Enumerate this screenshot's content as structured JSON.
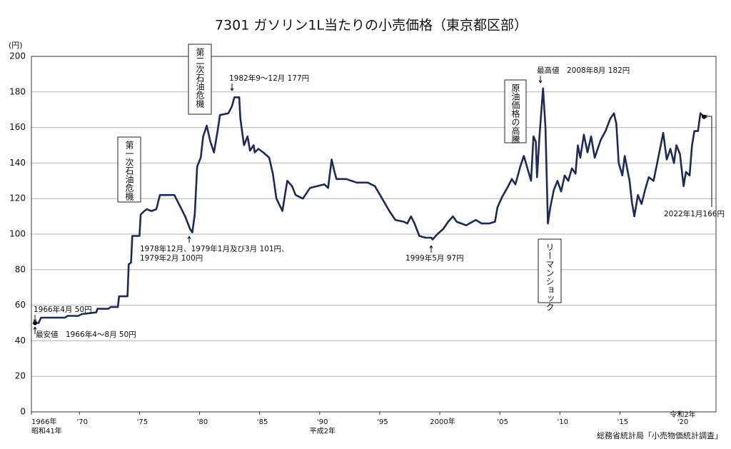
{
  "chart_data": {
    "type": "line",
    "title": "7301 ガソリン1L当たりの小売価格（東京都区部）",
    "y_label": "(円)",
    "xlim": [
      1966,
      2023
    ],
    "ylim": [
      0,
      200
    ],
    "yticks": [
      0,
      20,
      40,
      60,
      80,
      100,
      120,
      140,
      160,
      180,
      200
    ],
    "xticks": [
      {
        "value": 1966,
        "label": "1966年"
      },
      {
        "value": 1970,
        "label": "'70"
      },
      {
        "value": 1975,
        "label": "'75"
      },
      {
        "value": 1980,
        "label": "'80"
      },
      {
        "value": 1985,
        "label": "'85"
      },
      {
        "value": 1990,
        "label": "'90"
      },
      {
        "value": 1995,
        "label": "'95"
      },
      {
        "value": 2000,
        "label": "2000年"
      },
      {
        "value": 2005,
        "label": "'05"
      },
      {
        "value": 2010,
        "label": "'10"
      },
      {
        "value": 2015,
        "label": "'15"
      },
      {
        "value": 2020,
        "label": "'20"
      }
    ],
    "era_labels": [
      {
        "value": 1966,
        "label": "昭和41年"
      },
      {
        "value": 1990,
        "label": "平成2年"
      },
      {
        "value": 2020,
        "label": "令和2年"
      }
    ],
    "grid": true,
    "x": [
      1966.3,
      1966.6,
      1966.8,
      1968.8,
      1969,
      1969.9,
      1970.2,
      1971.4,
      1971.5,
      1972.4,
      1972.6,
      1973.2,
      1973.3,
      1974,
      1974.1,
      1974.3,
      1974.4,
      1975,
      1975.1,
      1975.4,
      1975.6,
      1976,
      1976.4,
      1976.7,
      1977.9,
      1978.2,
      1978.8,
      1979.2,
      1979.4,
      1979.6,
      1979.8,
      1980.1,
      1980.3,
      1980.6,
      1980.9,
      1981.2,
      1981.5,
      1981.7,
      1982.4,
      1982.7,
      1982.9,
      1983.3,
      1983.4,
      1983.7,
      1984,
      1984.2,
      1984.5,
      1984.6,
      1984.9,
      1985.3,
      1985.8,
      1986.1,
      1986.4,
      1986.9,
      1987.3,
      1987.7,
      1988,
      1988.6,
      1989.2,
      1989.8,
      1990.4,
      1990.7,
      1991,
      1991.2,
      1991.4,
      1992.2,
      1993.1,
      1994,
      1994.6,
      1995.2,
      1995.8,
      1996.3,
      1997,
      1997.3,
      1997.6,
      1997.9,
      1998.3,
      1998.8,
      1999.3,
      1999.4,
      1999.8,
      2000.3,
      2000.7,
      2001.1,
      2001.4,
      2001.8,
      2002.2,
      2003,
      2003.5,
      2004.1,
      2004.6,
      2004.8,
      2005.2,
      2005.7,
      2006,
      2006.3,
      2006.7,
      2007,
      2007.3,
      2007.6,
      2007.8,
      2008,
      2008.1,
      2008.3,
      2008.6,
      2008.8,
      2009,
      2009.2,
      2009.5,
      2009.8,
      2010.1,
      2010.4,
      2010.7,
      2011,
      2011.3,
      2011.5,
      2011.7,
      2012,
      2012.3,
      2012.6,
      2012.9,
      2013.4,
      2013.8,
      2014.2,
      2014.5,
      2014.7,
      2014.9,
      2015.2,
      2015.4,
      2015.8,
      2016,
      2016.2,
      2016.5,
      2016.8,
      2017.1,
      2017.4,
      2017.8,
      2018.1,
      2018.4,
      2018.6,
      2018.9,
      2019.2,
      2019.5,
      2019.7,
      2020,
      2020.3,
      2020.5,
      2020.8,
      2021,
      2021.2,
      2021.5,
      2021.7,
      2022
    ],
    "series": [
      {
        "name": "小売価格",
        "color": "#1c2a5a",
        "values": [
          50,
          50,
          53,
          53,
          54,
          54,
          55,
          56,
          58,
          58,
          59,
          59,
          65,
          65,
          83,
          84,
          99,
          99,
          111,
          113,
          114,
          113,
          114,
          122,
          122,
          118,
          110,
          103,
          101,
          111,
          138,
          143,
          155,
          161,
          152,
          146,
          158,
          167,
          168,
          172,
          177,
          177,
          165,
          150,
          155,
          147,
          150,
          146,
          148,
          146,
          143,
          134,
          120,
          113,
          130,
          127,
          122,
          120,
          126,
          127,
          128,
          126,
          142,
          136,
          131,
          131,
          129,
          129,
          127,
          120,
          113,
          108,
          107,
          106,
          110,
          106,
          99,
          98,
          98,
          97,
          100,
          103,
          107,
          110,
          107,
          106,
          105,
          108,
          106,
          106,
          107,
          115,
          121,
          127,
          131,
          128,
          138,
          144,
          137,
          130,
          155,
          152,
          132,
          155,
          182,
          160,
          106,
          115,
          125,
          130,
          124,
          133,
          130,
          137,
          134,
          150,
          143,
          156,
          146,
          155,
          143,
          153,
          158,
          165,
          168,
          162,
          140,
          133,
          144,
          130,
          118,
          110,
          122,
          117,
          125,
          132,
          130,
          140,
          150,
          157,
          142,
          148,
          140,
          150,
          145,
          127,
          135,
          133,
          150,
          158,
          158,
          168,
          166
        ]
      }
    ],
    "annotations": [
      "1982年9～12月 177円",
      "第二次石油危機",
      "第一次石油危機",
      "1978年12月、1979年1月及び3月 101円、",
      "1979年2月 100円",
      "1966年4月 50円",
      "最安値　1966年4～8月 50円",
      "1999年5月 97円",
      "原油価格の高騰",
      "最高値　2008年8月 182円",
      "リーマンショック",
      "2022年1月166円"
    ],
    "source": "総務省統計局「小売物価統計調査」"
  }
}
